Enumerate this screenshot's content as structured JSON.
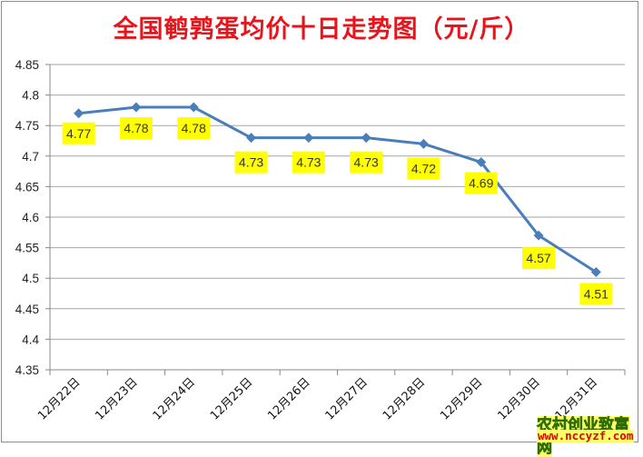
{
  "chart_data": {
    "type": "line",
    "title": "全国鹌鹑蛋均价十日走势图（元/斤）",
    "xlabel": "",
    "ylabel": "",
    "categories": [
      "12月22日",
      "12月23日",
      "12月24日",
      "12月25日",
      "12月26日",
      "12月27日",
      "12月28日",
      "12月29日",
      "12月30日",
      "12月31日"
    ],
    "series": [
      {
        "name": "鹌鹑蛋均价",
        "values": [
          4.77,
          4.78,
          4.78,
          4.73,
          4.73,
          4.73,
          4.72,
          4.69,
          4.57,
          4.51
        ],
        "color": "#4a7ebb",
        "marker": "diamond"
      }
    ],
    "data_labels": [
      "4.77",
      "4.78",
      "4.78",
      "4.73",
      "4.73",
      "4.73",
      "4.72",
      "4.69",
      "4.57",
      "4.51"
    ],
    "ylim": [
      4.35,
      4.85
    ],
    "yticks": [
      "4.85",
      "4.8",
      "4.75",
      "4.7",
      "4.65",
      "4.6",
      "4.55",
      "4.5",
      "4.45",
      "4.4",
      "4.35"
    ],
    "grid": true,
    "legend": "none",
    "label_background": "#ffff00"
  },
  "header": {
    "title": "全国鹌鹑蛋均价十日走势图（元/斤）"
  },
  "watermark": {
    "line1": "农村创业致富网",
    "line2": "www.nccyzf.com"
  },
  "colors": {
    "title": "#e8141b",
    "line": "#4a7ebb",
    "label_bg": "#ffff00",
    "grid": "#a6a6a6"
  }
}
